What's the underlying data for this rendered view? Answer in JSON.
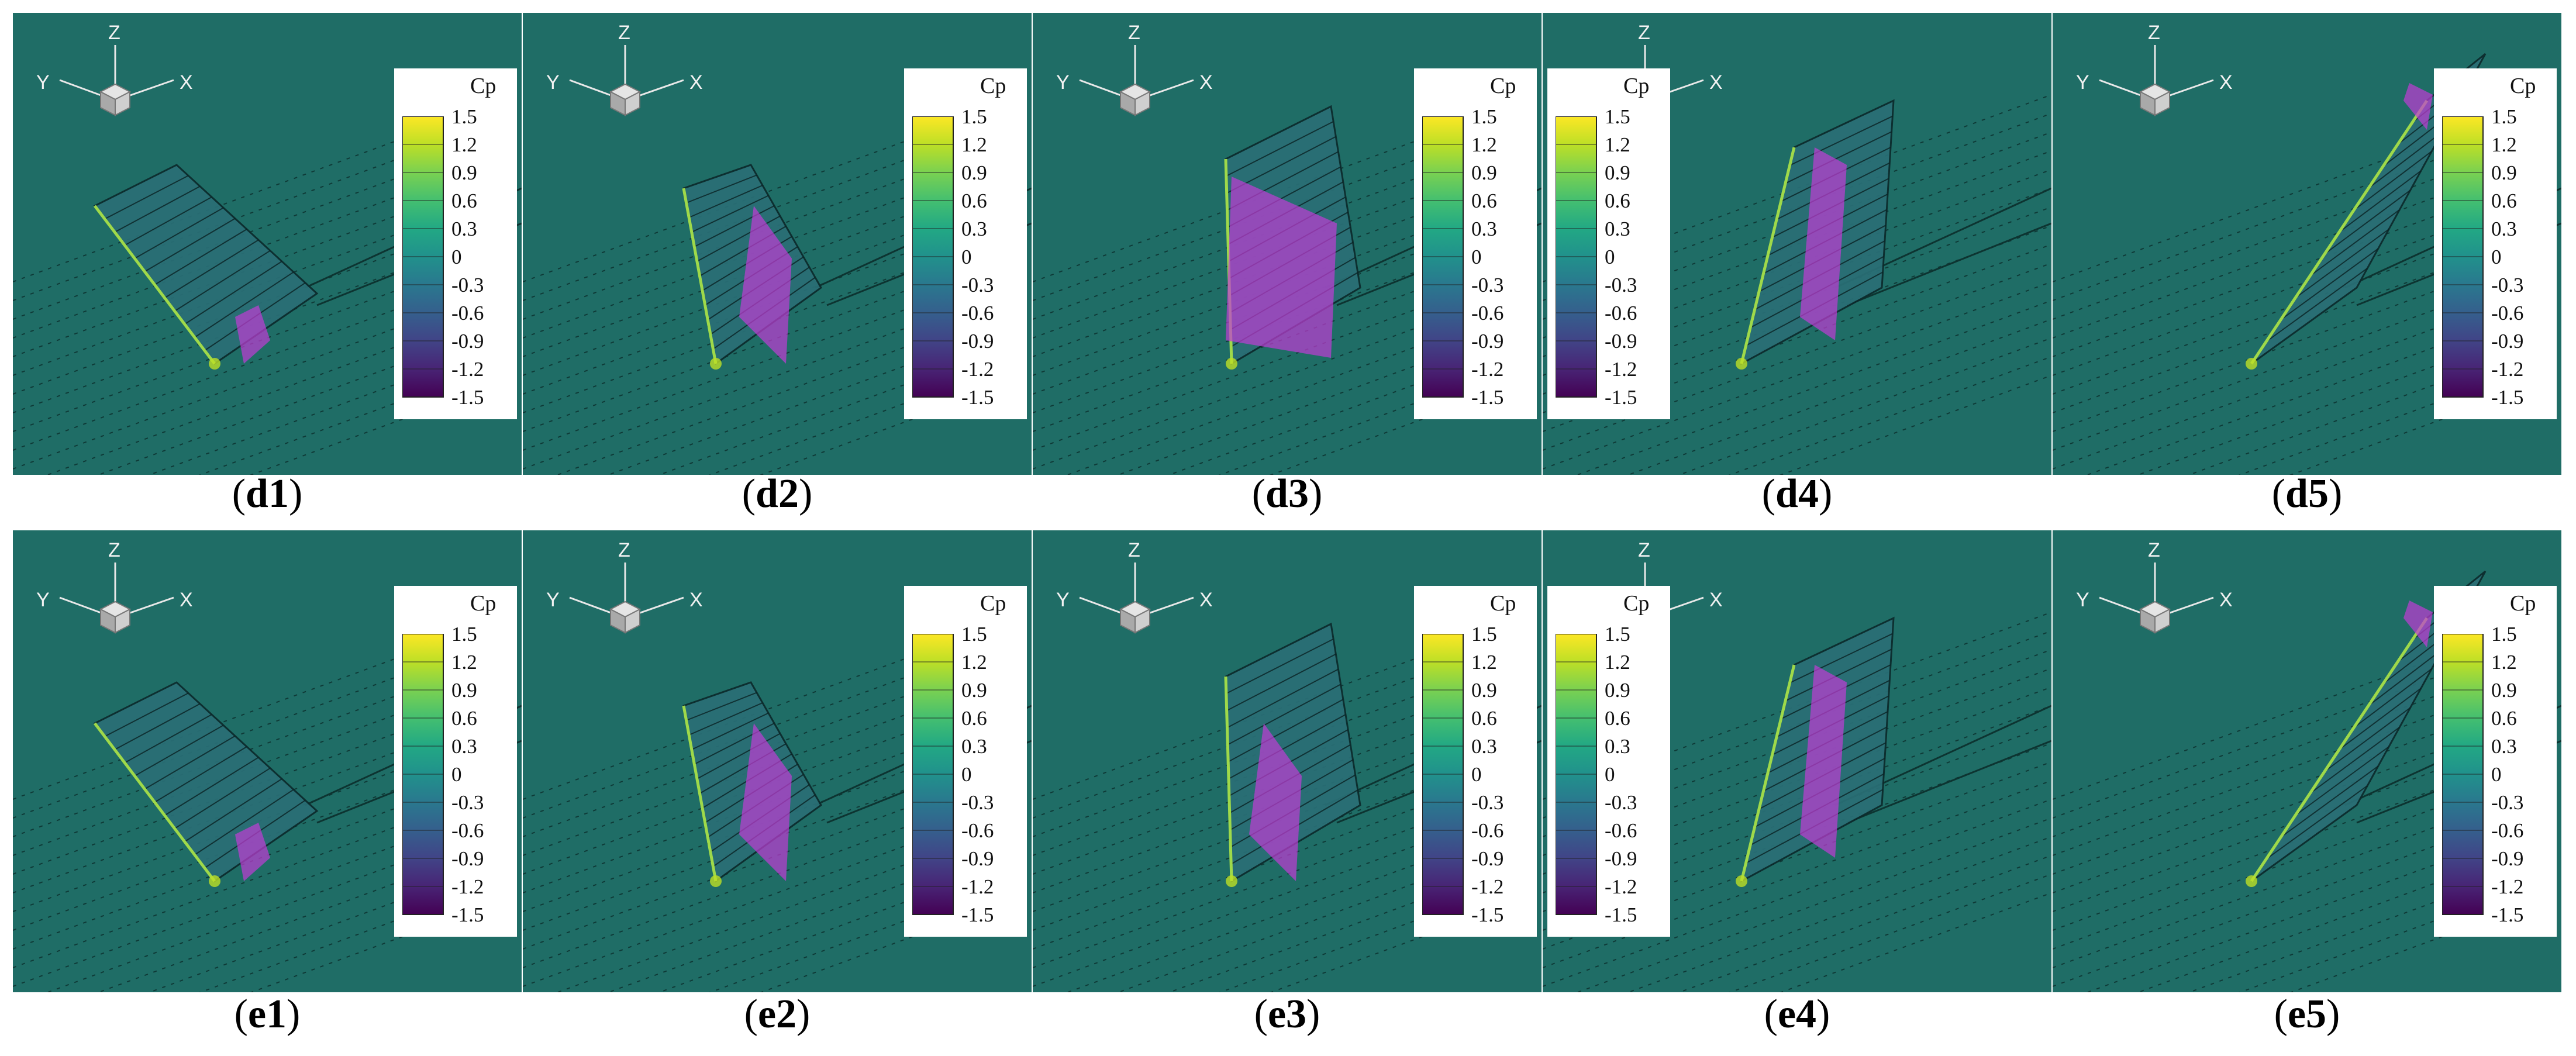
{
  "legend": {
    "title": "Cp",
    "ticks": [
      "1.5",
      "1.2",
      "0.9",
      "0.6",
      "0.3",
      "0",
      "-0.3",
      "-0.6",
      "-0.9",
      "-1.2",
      "-1.5"
    ],
    "colors": [
      "#fde725",
      "#bddf26",
      "#7ad151",
      "#44bf70",
      "#22a884",
      "#21918c",
      "#2a788e",
      "#355f8d",
      "#414487",
      "#482475",
      "#440154"
    ]
  },
  "axes": {
    "x": "X",
    "y": "Y",
    "z": "Z"
  },
  "background_color": "#1f6d66",
  "vortex_color": "#c03cd6",
  "rows": [
    {
      "panels": [
        {
          "id": "d1",
          "letter": "d",
          "number": "1",
          "wing": "tilted",
          "vortex": "small"
        },
        {
          "id": "d2",
          "letter": "d",
          "number": "2",
          "wing": "upright",
          "vortex": "medium"
        },
        {
          "id": "d3",
          "letter": "d",
          "number": "3",
          "wing": "vertical",
          "vortex": "large"
        },
        {
          "id": "d4",
          "letter": "d",
          "number": "4",
          "wing": "leaning",
          "vortex": "tall"
        },
        {
          "id": "d5",
          "letter": "d",
          "number": "5",
          "wing": "swept",
          "vortex": "tip"
        }
      ]
    },
    {
      "panels": [
        {
          "id": "e1",
          "letter": "e",
          "number": "1",
          "wing": "tilted",
          "vortex": "small"
        },
        {
          "id": "e2",
          "letter": "e",
          "number": "2",
          "wing": "upright",
          "vortex": "medium"
        },
        {
          "id": "e3",
          "letter": "e",
          "number": "3",
          "wing": "vertical",
          "vortex": "medium"
        },
        {
          "id": "e4",
          "letter": "e",
          "number": "4",
          "wing": "leaning",
          "vortex": "tall"
        },
        {
          "id": "e5",
          "letter": "e",
          "number": "5",
          "wing": "swept",
          "vortex": "tip"
        }
      ]
    }
  ]
}
